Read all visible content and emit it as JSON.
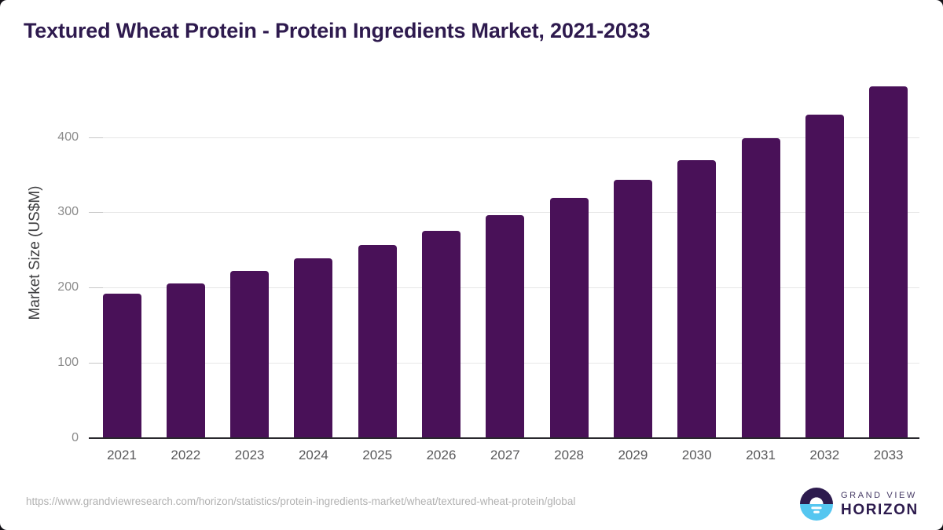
{
  "page": {
    "title": "Textured Wheat Protein - Protein Ingredients Market, 2021-2033",
    "source_url": "https://www.grandviewresearch.com/horizon/statistics/protein-ingredients-market/wheat/textured-wheat-protein/global",
    "brand": {
      "name_line1": "GRAND VIEW",
      "name_line2": "HORIZON"
    }
  },
  "chart_data": {
    "type": "bar",
    "title": "Textured Wheat Protein - Protein Ingredients Market, 2021-2033",
    "categories": [
      "2021",
      "2022",
      "2023",
      "2024",
      "2025",
      "2026",
      "2027",
      "2028",
      "2029",
      "2030",
      "2031",
      "2032",
      "2033"
    ],
    "values": [
      192,
      206,
      222,
      239,
      257,
      275,
      296,
      319,
      343,
      369,
      398,
      430,
      467
    ],
    "xlabel": "",
    "ylabel": "Market Size (US$M)",
    "unit": "US$M",
    "ylim": [
      0,
      483
    ],
    "yticks": [
      0,
      100,
      200,
      300,
      400
    ],
    "grid": true,
    "legend": false,
    "bar_color": "#491158"
  },
  "colors": {
    "bar": "#491158",
    "title_text": "#2e1a4e",
    "axis_line": "#29282d",
    "gridline": "#e7e7e7",
    "y_tick_label": "#8b8b8b",
    "x_tick_label": "#58585a",
    "url_text": "#b1b1b1",
    "logo_dark_purple": "#2d1b4e",
    "logo_light_blue": "#55c6f0"
  },
  "icons": {
    "logo": "grand-view-horizon-logo"
  }
}
